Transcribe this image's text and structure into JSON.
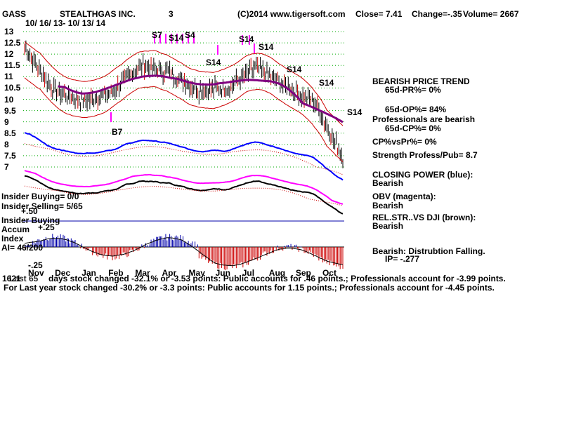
{
  "header": {
    "symbol": "GASS",
    "company": "STEALTHGAS INC.",
    "num": "3",
    "copyright": "(C)2014 www.tigersoft.com",
    "close": "Close=  7.41",
    "change": "Change=-.35",
    "volume": "Volume= 2667",
    "date_range": "10/ 16/ 13- 10/ 13/ 14"
  },
  "y_ticks": [
    "13",
    "12.5",
    "12",
    "11.5",
    "11",
    "10.5",
    "10",
    "9.5",
    "9",
    "8.5",
    "8",
    "7.5",
    "7"
  ],
  "x_ticks": [
    "Nov",
    "Dec",
    "Jan",
    "Feb",
    "Mar",
    "Apr",
    "May",
    "Jun",
    "Jul",
    "Aug",
    "Sep",
    "Oct"
  ],
  "signals": [
    "S7",
    "S14",
    "S4",
    "S14",
    "S14",
    "S14",
    "S14",
    "S14",
    "S14",
    "B7"
  ],
  "left_panel": {
    "insider_buying": "Insider Buying= 0/0",
    "insider_selling": "Insider Selling= 5/65",
    "plus50": "+.50",
    "insider_buying2": "Insider Buying",
    "accum": "Accum",
    "plus25": "+.25",
    "index": "Index",
    "ai": "AI= 46/200",
    "minus25": "-.25"
  },
  "right_panel": {
    "trend": "BEARISH PRICE TREND",
    "pr": "65d-PR%= 0%",
    "op": "65d-OP%= 84%",
    "prof_bearish": "Professionals are bearish",
    "cp": "65d-CP%= 0%",
    "cpvspr": "CP%vsPr%=  0%",
    "strength": "Strength Profess/Pub= 8.7",
    "closing_power": "CLOSING POWER (blue):",
    "cp_bearish": "Bearish",
    "obv": "OBV (magenta):",
    "obv_bearish": "Bearish",
    "relstr": "REL.STR..VS DJI (brown):",
    "relstr_bearish": "Bearish",
    "distribution": "Bearish:  Distrubtion Falling.",
    "ip": "IP= -.277"
  },
  "footer": {
    "line1_prefix": "1621",
    "line1_overlap": "Last 65",
    "line1": "days stock changed -32.1% or -3.53 points:  Public accounts for  .46 points.;  Professionals account for -3.99 points.",
    "line2": "For Last year stock changed -30.2% or -3.3 points:  Public accounts for  1.15 points.;  Professionals account for -4.45 points."
  },
  "colors": {
    "price_bar": "#000000",
    "up_bar": "#cc0000",
    "bollinger": "#cc0000",
    "ma": "#800080",
    "closing_power": "#0000ff",
    "obv": "#ff00ff",
    "relstr": "#000000",
    "accum_pos": "#0000aa",
    "accum_neg": "#cc0000",
    "grid": "#00aa00"
  },
  "chart_data": {
    "type": "line",
    "title": "STEALTHGAS INC.",
    "x": [
      "Nov",
      "Dec",
      "Jan",
      "Feb",
      "Mar",
      "Apr",
      "May",
      "Jun",
      "Jul",
      "Aug",
      "Sep",
      "Oct"
    ],
    "price_close": [
      12.3,
      10.4,
      9.9,
      10.3,
      11.5,
      11.2,
      10.4,
      10.5,
      11.4,
      10.6,
      9.9,
      7.41
    ],
    "ylim": [
      7,
      13
    ],
    "grid": true
  }
}
